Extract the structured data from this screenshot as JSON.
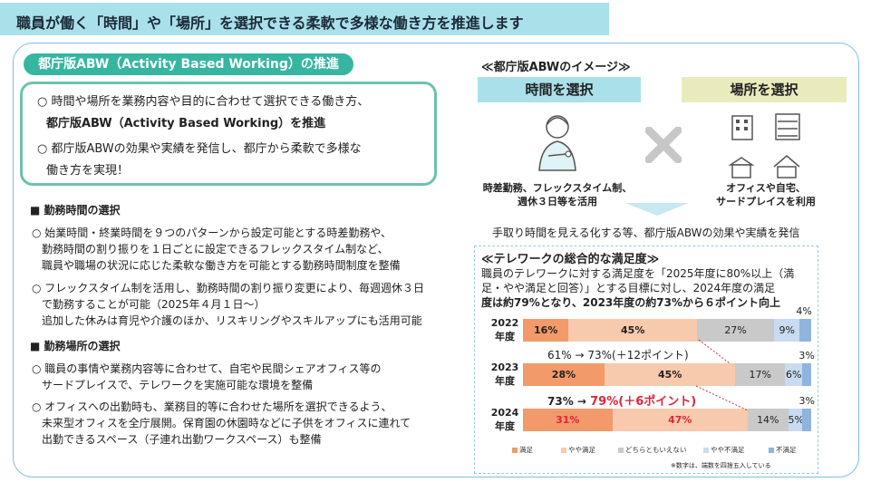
{
  "title": "職員が働く「時間」や「場所」を選択できる柔軟で多様な働き方を推進します",
  "abw": {
    "pill": "都庁版ABW（Activity Based Working）の推進",
    "line1": "○ 時間や場所を業務内容や目的に合わせて選択できる働き方、",
    "line2": "都庁版ABW（Activity Based Working）を推進",
    "line3": "○ 都庁版ABWの効果や実績を発信し、都庁から柔軟で多様な",
    "line4": "働き方を実現！"
  },
  "time_section": {
    "heading": "■ 勤務時間の選択",
    "p1a": "○ 始業時間・終業時間を９つのパターンから設定可能とする時差勤務や、",
    "p1b": "勤務時間の割り振りを１日ごとに設定できるフレックスタイム制など、",
    "p1c": "職員や職場の状況に応じた柔軟な働き方を可能とする勤務時間制度を整備",
    "p2a": "○ フレックスタイム制を活用し、勤務時間の割り振り変更により、毎週週休３日",
    "p2b": "で勤務することが可能（2025年４月１日～）",
    "p2c": "追加した休みは育児や介護のほか、リスキリングやスキルアップにも活用可能"
  },
  "place_section": {
    "heading": "■ 勤務場所の選択",
    "p1a": "○ 職員の事情や業務内容等に合わせて、自宅や民間シェアオフィス等の",
    "p1b": "サードプレイスで、テレワークを実施可能な環境を整備",
    "p2a": "○ オフィスへの出勤時も、業務目的等に合わせた場所を選択できるよう、",
    "p2b": "未来型オフィスを全庁展開。保育園の休園時などに子供をオフィスに連れて",
    "p2c": "出勤できるスペース（子連れ出勤ワークスペース）も整備"
  },
  "image": {
    "title": "≪都庁版ABWのイメージ≫",
    "time_label": "時間を選択",
    "place_label": "場所を選択",
    "time_cap1": "時差勤務、フレックスタイム制、",
    "time_cap2": "週休３日等を活用",
    "place_cap1": "オフィスや自宅、",
    "place_cap2": "サードプレイスを利用",
    "bottom": "手取り時間を見える化する等、都庁版ABWの効果や実績を発信"
  },
  "satisfaction": {
    "title": "≪テレワークの総合的な満足度≫",
    "desc1": "職員のテレワークに対する満足度を「2025年度に80%以上（満",
    "desc2": "足・やや満足と回答）」とする目標に対し、2024年度の満足",
    "desc3": "度は約79%となり、2023年度の約73%から６ポイント向上",
    "change1": "61% → 73%(＋12ポイント)",
    "change2_a": "73% → ",
    "change2_b": "79%(＋6ポイント)",
    "note": "※数字は、端数を四捨五入している",
    "year_suffix": "年度"
  },
  "chart_data": {
    "type": "bar",
    "orientation": "horizontal-stacked",
    "categories": [
      "2022",
      "2023",
      "2024"
    ],
    "series": [
      {
        "name": "満足",
        "values": [
          16,
          28,
          31
        ],
        "color": "#f39a6a"
      },
      {
        "name": "やや満足",
        "values": [
          45,
          45,
          47
        ],
        "color": "#f7c9ad"
      },
      {
        "name": "どちらともいえない",
        "values": [
          27,
          17,
          14
        ],
        "color": "#c9c9c9"
      },
      {
        "name": "やや不満足",
        "values": [
          9,
          6,
          5
        ],
        "color": "#c8dbf0"
      },
      {
        "name": "不満足",
        "values": [
          4,
          3,
          3
        ],
        "color": "#8fb4de"
      }
    ],
    "labels": [
      [
        "16%",
        "45%",
        "27%",
        "9%",
        "4%"
      ],
      [
        "28%",
        "45%",
        "17%",
        "6%",
        "3%"
      ],
      [
        "31%",
        "47%",
        "14%",
        "5%",
        "3%"
      ]
    ]
  }
}
